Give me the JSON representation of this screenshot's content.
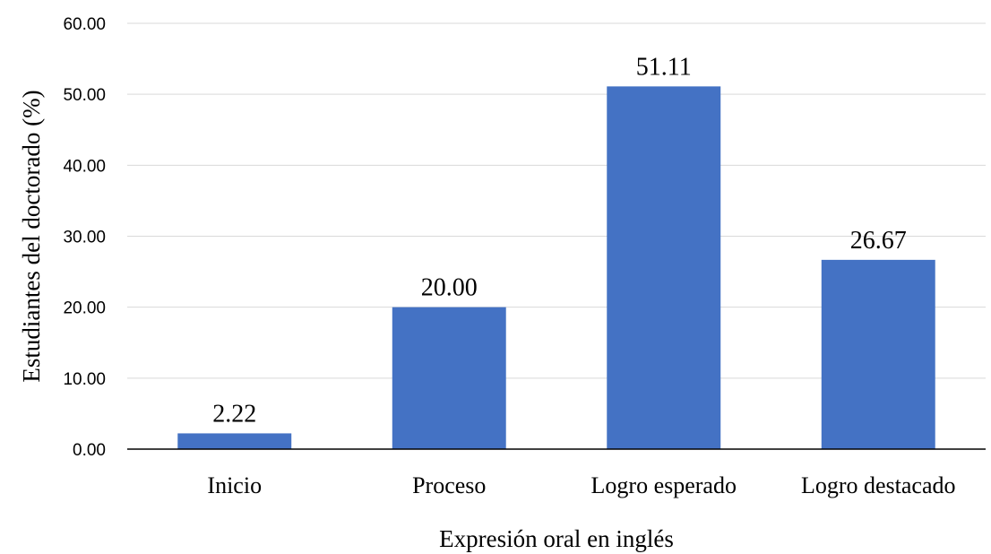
{
  "chart_data": {
    "type": "bar",
    "title": "",
    "xlabel": "Expresión oral en inglés",
    "ylabel": "Estudiantes del doctorado  (%)",
    "categories": [
      "Inicio",
      "Proceso",
      "Logro esperado",
      "Logro destacado"
    ],
    "values": [
      2.22,
      20.0,
      51.11,
      26.67
    ],
    "data_labels": [
      "2.22",
      "20.00",
      "51.11",
      "26.67"
    ],
    "ylim": [
      0,
      60
    ],
    "yticks": [
      0,
      10,
      20,
      30,
      40,
      50,
      60
    ],
    "ytick_labels": [
      "0.00",
      "10.00",
      "20.00",
      "30.00",
      "40.00",
      "50.00",
      "60.00"
    ],
    "grid": true,
    "legend": "none",
    "bar_color": "#4472c4"
  }
}
